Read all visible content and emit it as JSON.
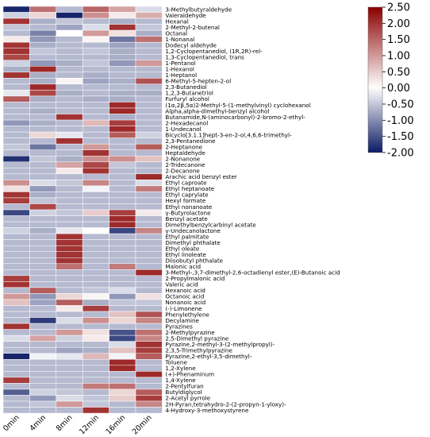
{
  "chart_data": {
    "type": "heatmap",
    "columns": [
      "0min",
      "4min",
      "8min",
      "12min",
      "16min",
      "20min"
    ],
    "rows": [
      "3-Methylbutyraldehyde",
      "Valeraldehyde",
      "Hexanal",
      "2-Methyl-2-butenal",
      "Octanal",
      "1-Nonanal",
      "Dodecyl aldehyde",
      "1,2-Cyclopentanediol, (1R,2R)-rel-",
      "1,3-Cyclopentanediol, trans",
      "1-Pentanol",
      "1-Hexanol",
      "1-Heptanol",
      "6-Methyl-5-hepten-2-ol",
      "2,3-Butanediol",
      "1,2,3-Butanetriol",
      "Furfuryl alcohol",
      "(1α,2β,5α)2-Methyl-5-(1-methylvinyl) cyclohexanol",
      "Alpha,alpha-dimethyl-benzyl alcohol",
      "Butanamide,N-(aminocarbonyl)-2-bromo-2-ethyl-",
      "2-Hexadecanol",
      "1-Undecanol",
      "Bicyclo[3.1.1]hept-3-en-2-ol,4,6,6-trimethyl-",
      "2,3-Pentanedione",
      "2-Heptanone",
      "Heptaldehyde",
      "2-Nonanone",
      "2-Tridecanone",
      "2-Decanone",
      "Arachic acid benzyl ester",
      "Ethyl caproate",
      "Ethyl heptanoate",
      "Ethyl caprylate",
      "Hexyl formate",
      "Ethyl nonanoate",
      "γ-Butyrolactone",
      "Benzyl acetate",
      "Dimethylbenzylcarbinyl acetate",
      "γ-Undecanolactone",
      "Ethyl palmitate",
      "Dimethyl phthalate",
      "Ethyl oleate",
      "Ethyl linoleate",
      "Diisobutyl phthalate",
      "Malonic acid",
      "3-Methyl-,3,7-dimethyl-2,6-octadienyl ester,(E)-Butanoic acid",
      "2-Propylmalonic acid",
      "Valeric acid",
      "Hexanoic acid",
      "Octanoic acid",
      "Nonanoic acid",
      "(-)-Limonene",
      "Phenylethylene",
      "Decylamine",
      "Pyrazines",
      "2-Methylpyrazine",
      "2,5-Dimethyl pyrazine",
      "Pyrazine,2-methyl-3-(2-methylpropyl)-",
      "2,3,5-Trimethylpyrazine",
      "Pyrazine,2-ethyl-3,5-dimethyl-",
      "Toluene",
      "1,2-Xylene",
      "(+)-Phenaminum",
      "1,4-Xylene",
      "2-Pentylfuran",
      "Butyldiglycol",
      "2-Acetyl pyrrole",
      "2H-Pyran,tetrahydro-2-(2-propyn-1-yloxy)-",
      "4-Hydroxy-3-methoxystyrene"
    ],
    "values": [
      [
        -1.9,
        1.4,
        -0.6,
        1.5,
        0.9,
        -0.3
      ],
      [
        -0.4,
        0.4,
        -1.9,
        1.1,
        0.2,
        0.8
      ],
      [
        2.0,
        -0.7,
        -0.5,
        -0.6,
        -0.7,
        -0.6
      ],
      [
        -0.5,
        -0.6,
        -0.8,
        -0.3,
        2.0,
        -0.5
      ],
      [
        -0.6,
        -1.1,
        0.0,
        1.0,
        0.3,
        -0.7
      ],
      [
        0.2,
        -0.9,
        -0.6,
        0.1,
        -1.2,
        1.4
      ],
      [
        2.0,
        -0.7,
        -0.6,
        -0.6,
        -0.8,
        -0.6
      ],
      [
        2.0,
        -0.5,
        -0.6,
        -0.5,
        -0.7,
        -0.6
      ],
      [
        1.8,
        -0.6,
        -0.6,
        -0.6,
        -0.7,
        -0.6
      ],
      [
        -0.4,
        -0.9,
        -0.7,
        -0.5,
        -0.9,
        1.0
      ],
      [
        -0.7,
        2.1,
        -0.6,
        -0.6,
        -0.6,
        -0.6
      ],
      [
        2.0,
        -0.7,
        -0.6,
        -0.7,
        -0.6,
        -0.6
      ],
      [
        -0.6,
        -0.7,
        0.1,
        -0.8,
        -0.7,
        1.7
      ],
      [
        -0.6,
        2.1,
        -0.6,
        -0.6,
        -0.6,
        -0.6
      ],
      [
        -0.2,
        1.8,
        -0.7,
        -0.6,
        -0.7,
        -0.7
      ],
      [
        1.6,
        -0.7,
        -0.6,
        -0.7,
        -0.7,
        -0.6
      ],
      [
        -0.6,
        -0.6,
        -0.6,
        -0.6,
        2.1,
        -0.6
      ],
      [
        -0.6,
        -0.7,
        -0.6,
        -0.6,
        2.1,
        -0.6
      ],
      [
        -0.6,
        -0.6,
        2.0,
        -0.6,
        -0.7,
        -0.6
      ],
      [
        -0.9,
        -0.7,
        -0.6,
        0.7,
        1.9,
        -0.6
      ],
      [
        -0.6,
        -0.6,
        -0.6,
        -0.6,
        2.1,
        -0.6
      ],
      [
        -0.6,
        0.4,
        -0.2,
        -0.6,
        1.6,
        -0.4
      ],
      [
        -0.6,
        -0.6,
        2.0,
        -0.6,
        -0.6,
        -0.6
      ],
      [
        -0.5,
        -1.2,
        -0.6,
        1.0,
        -0.6,
        1.6
      ],
      [
        -0.6,
        -0.6,
        -0.6,
        2.0,
        -0.6,
        -0.6
      ],
      [
        -1.8,
        -0.5,
        -0.7,
        1.1,
        1.1,
        0.6
      ],
      [
        -0.6,
        -0.6,
        0.9,
        1.8,
        -0.5,
        -0.6
      ],
      [
        -0.6,
        -0.6,
        0.2,
        2.0,
        -0.6,
        -0.6
      ],
      [
        -0.6,
        -0.6,
        -0.6,
        -0.6,
        -0.6,
        2.1
      ],
      [
        1.1,
        -0.3,
        -0.5,
        1.2,
        -0.6,
        -0.3
      ],
      [
        0.3,
        -0.9,
        -0.6,
        -0.1,
        -0.6,
        1.3
      ],
      [
        2.0,
        -0.7,
        -0.6,
        -0.6,
        -0.6,
        -0.6
      ],
      [
        1.9,
        -0.5,
        -0.6,
        -0.6,
        -0.6,
        -0.6
      ],
      [
        -0.6,
        1.8,
        -0.6,
        -0.6,
        -0.6,
        -0.6
      ],
      [
        -1.6,
        -0.4,
        -0.5,
        0.5,
        1.9,
        0.2
      ],
      [
        -0.6,
        -0.6,
        -0.6,
        -0.6,
        2.1,
        -0.6
      ],
      [
        -0.6,
        -0.6,
        -0.6,
        -0.6,
        2.1,
        -0.6
      ],
      [
        -0.4,
        -0.7,
        -0.2,
        0.0,
        -1.6,
        1.2
      ],
      [
        -0.6,
        -0.6,
        2.0,
        -0.6,
        -0.6,
        -0.6
      ],
      [
        -0.6,
        -0.6,
        2.0,
        -0.6,
        -0.6,
        -0.6
      ],
      [
        -0.6,
        -0.6,
        2.0,
        -0.6,
        -0.6,
        -0.6
      ],
      [
        -0.6,
        -0.6,
        2.0,
        -0.6,
        -0.6,
        -0.6
      ],
      [
        -0.6,
        -0.6,
        2.0,
        -0.6,
        -0.6,
        -0.6
      ],
      [
        -0.6,
        -0.6,
        1.4,
        -0.6,
        1.3,
        -0.6
      ],
      [
        -0.6,
        -0.6,
        -0.6,
        -0.6,
        -0.6,
        2.1
      ],
      [
        1.9,
        -0.6,
        -0.6,
        -0.6,
        -0.6,
        -0.6
      ],
      [
        2.0,
        -0.6,
        -0.6,
        -0.6,
        -0.6,
        -0.6
      ],
      [
        -0.6,
        1.6,
        -0.6,
        -0.5,
        -0.3,
        -0.6
      ],
      [
        1.0,
        -0.9,
        0.4,
        0.1,
        -0.9,
        0.3
      ],
      [
        0.6,
        -0.8,
        1.6,
        -0.7,
        -0.5,
        -0.5
      ],
      [
        -0.6,
        -0.6,
        0.2,
        1.9,
        -0.6,
        -0.6
      ],
      [
        -0.6,
        -0.6,
        -0.6,
        -0.6,
        0.6,
        1.7
      ],
      [
        -0.6,
        -1.7,
        -0.3,
        1.1,
        0.4,
        1.2
      ],
      [
        2.0,
        -0.6,
        -0.6,
        -0.6,
        -0.6,
        -0.6
      ],
      [
        -0.6,
        -0.6,
        1.0,
        0.3,
        -1.5,
        1.4
      ],
      [
        -0.3,
        0.9,
        -0.4,
        0.2,
        -1.6,
        1.2
      ],
      [
        -0.6,
        -0.6,
        -0.6,
        -0.6,
        -0.3,
        2.0
      ],
      [
        -0.6,
        -0.6,
        -0.8,
        -0.7,
        0.6,
        1.9
      ],
      [
        -1.9,
        -0.1,
        -0.2,
        0.7,
        -0.1,
        1.6
      ],
      [
        -0.6,
        -0.6,
        -0.6,
        -0.6,
        2.1,
        -0.6
      ],
      [
        -0.6,
        -0.6,
        -0.6,
        -0.6,
        2.1,
        -0.6
      ],
      [
        -0.6,
        -0.6,
        -0.6,
        -0.6,
        -0.6,
        2.1
      ],
      [
        1.9,
        -0.6,
        -0.6,
        -0.6,
        -0.6,
        -0.6
      ],
      [
        -0.6,
        -0.6,
        -0.6,
        1.3,
        1.4,
        -0.6
      ],
      [
        -1.4,
        -0.4,
        -0.5,
        -0.6,
        0.4,
        1.6
      ],
      [
        -0.6,
        -0.9,
        -0.3,
        -0.5,
        0.5,
        1.9
      ],
      [
        -0.6,
        -0.5,
        1.0,
        -0.5,
        -0.6,
        1.2
      ],
      [
        -0.6,
        -0.6,
        -0.6,
        2.0,
        -0.6,
        -0.6
      ]
    ],
    "colorbar": {
      "min": -2.0,
      "max": 2.5,
      "ticks": [
        "2.50",
        "2.00",
        "1.50",
        "1.00",
        "0.50",
        "0.00",
        "-0.50",
        "-1.00",
        "-1.50",
        "-2.00"
      ],
      "colors": {
        "low": "#0b1a63",
        "mid": "#ffffff",
        "high": "#8b0000"
      },
      "placement": "top-right"
    },
    "xlabel": "",
    "ylabel": "",
    "title": ""
  }
}
